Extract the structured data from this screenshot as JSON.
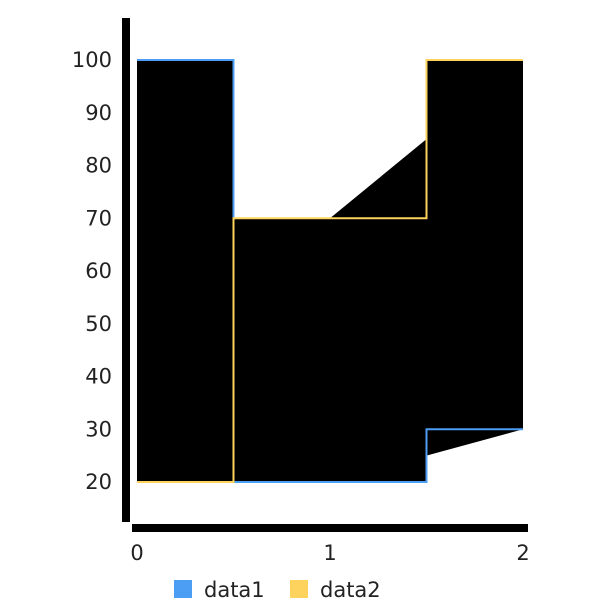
{
  "chart_data": {
    "type": "area",
    "title": "",
    "xlabel": "",
    "ylabel": "",
    "xlim": [
      0,
      2
    ],
    "ylim": [
      20,
      100
    ],
    "x_ticks": [
      "0",
      "1",
      "2"
    ],
    "y_ticks": [
      "20",
      "30",
      "40",
      "50",
      "60",
      "70",
      "80",
      "90",
      "100"
    ],
    "grid": false,
    "legend_position": "bottom",
    "step": "middle",
    "fill_color": "#000000",
    "x": [
      0,
      1,
      2
    ],
    "series": [
      {
        "name": "data1",
        "color": "#4c9ef5",
        "values": [
          100,
          20,
          30
        ]
      },
      {
        "name": "data2",
        "color": "#fdd35e",
        "values": [
          20,
          70,
          100
        ]
      }
    ]
  }
}
